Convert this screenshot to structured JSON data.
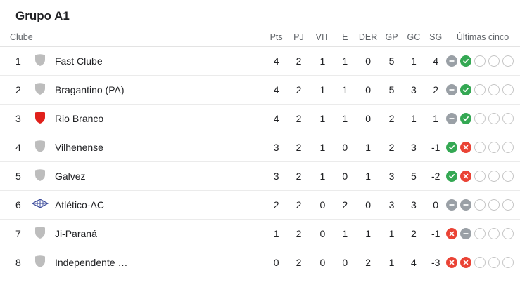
{
  "group_title": "Grupo A1",
  "headers": {
    "club": "Clube",
    "pts": "Pts",
    "pj": "PJ",
    "vit": "VIT",
    "e": "E",
    "der": "DER",
    "gp": "GP",
    "gc": "GC",
    "sg": "SG",
    "last5": "Últimas cinco"
  },
  "colors": {
    "win": "#34a853",
    "draw": "#9aa0a6",
    "loss": "#ea4335",
    "crest_default": "#bdbdbd",
    "crest_rio_branco": "#e0201b",
    "crest_atletico": "#3a4a9a"
  },
  "rows": [
    {
      "pos": "1",
      "name": "Fast Clube",
      "crest": "gray-shield-icon",
      "pts": "4",
      "pj": "2",
      "vit": "1",
      "e": "1",
      "der": "0",
      "gp": "5",
      "gc": "1",
      "sg": "4",
      "form": [
        "draw",
        "win",
        "empty",
        "empty",
        "empty"
      ]
    },
    {
      "pos": "2",
      "name": "Bragantino (PA)",
      "crest": "gray-shield-icon",
      "pts": "4",
      "pj": "2",
      "vit": "1",
      "e": "1",
      "der": "0",
      "gp": "5",
      "gc": "3",
      "sg": "2",
      "form": [
        "draw",
        "win",
        "empty",
        "empty",
        "empty"
      ]
    },
    {
      "pos": "3",
      "name": "Rio Branco",
      "crest": "red-shield-icon",
      "pts": "4",
      "pj": "2",
      "vit": "1",
      "e": "1",
      "der": "0",
      "gp": "2",
      "gc": "1",
      "sg": "1",
      "form": [
        "draw",
        "win",
        "empty",
        "empty",
        "empty"
      ]
    },
    {
      "pos": "4",
      "name": "Vilhenense",
      "crest": "gray-shield-icon",
      "pts": "3",
      "pj": "2",
      "vit": "1",
      "e": "0",
      "der": "1",
      "gp": "2",
      "gc": "3",
      "sg": "-1",
      "form": [
        "win",
        "loss",
        "empty",
        "empty",
        "empty"
      ]
    },
    {
      "pos": "5",
      "name": "Galvez",
      "crest": "gray-shield-icon",
      "pts": "3",
      "pj": "2",
      "vit": "1",
      "e": "0",
      "der": "1",
      "gp": "3",
      "gc": "5",
      "sg": "-2",
      "form": [
        "win",
        "loss",
        "empty",
        "empty",
        "empty"
      ]
    },
    {
      "pos": "6",
      "name": "Atlético-AC",
      "crest": "diamond-crest-icon",
      "pts": "2",
      "pj": "2",
      "vit": "0",
      "e": "2",
      "der": "0",
      "gp": "3",
      "gc": "3",
      "sg": "0",
      "form": [
        "draw",
        "draw",
        "empty",
        "empty",
        "empty"
      ]
    },
    {
      "pos": "7",
      "name": "Ji-Paraná",
      "crest": "gray-shield-icon",
      "pts": "1",
      "pj": "2",
      "vit": "0",
      "e": "1",
      "der": "1",
      "gp": "1",
      "gc": "2",
      "sg": "-1",
      "form": [
        "loss",
        "draw",
        "empty",
        "empty",
        "empty"
      ]
    },
    {
      "pos": "8",
      "name": "Independente …",
      "crest": "gray-shield-icon",
      "pts": "0",
      "pj": "2",
      "vit": "0",
      "e": "0",
      "der": "2",
      "gp": "1",
      "gc": "4",
      "sg": "-3",
      "form": [
        "loss",
        "loss",
        "empty",
        "empty",
        "empty"
      ]
    }
  ]
}
